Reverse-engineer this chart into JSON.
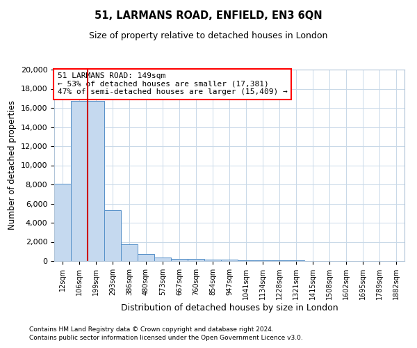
{
  "title": "51, LARMANS ROAD, ENFIELD, EN3 6QN",
  "subtitle": "Size of property relative to detached houses in London",
  "xlabel": "Distribution of detached houses by size in London",
  "ylabel": "Number of detached properties",
  "annotation_title": "51 LARMANS ROAD: 149sqm",
  "annotation_line1": "← 53% of detached houses are smaller (17,381)",
  "annotation_line2": "47% of semi-detached houses are larger (15,409) →",
  "footer1": "Contains HM Land Registry data © Crown copyright and database right 2024.",
  "footer2": "Contains public sector information licensed under the Open Government Licence v3.0.",
  "bar_color": "#c5d9ef",
  "bar_edge_color": "#5590c8",
  "marker_line_color": "#cc0000",
  "categories": [
    "12sqm",
    "106sqm",
    "199sqm",
    "293sqm",
    "386sqm",
    "480sqm",
    "573sqm",
    "667sqm",
    "760sqm",
    "854sqm",
    "947sqm",
    "1041sqm",
    "1134sqm",
    "1228sqm",
    "1321sqm",
    "1415sqm",
    "1508sqm",
    "1602sqm",
    "1695sqm",
    "1789sqm",
    "1882sqm"
  ],
  "values": [
    8100,
    16700,
    16700,
    5300,
    1750,
    700,
    350,
    250,
    200,
    150,
    110,
    80,
    60,
    50,
    40,
    30,
    25,
    20,
    15,
    10,
    8
  ],
  "ylim": [
    0,
    20000
  ],
  "yticks": [
    0,
    2000,
    4000,
    6000,
    8000,
    10000,
    12000,
    14000,
    16000,
    18000,
    20000
  ],
  "background_color": "#ffffff",
  "grid_color": "#c8d8e8"
}
